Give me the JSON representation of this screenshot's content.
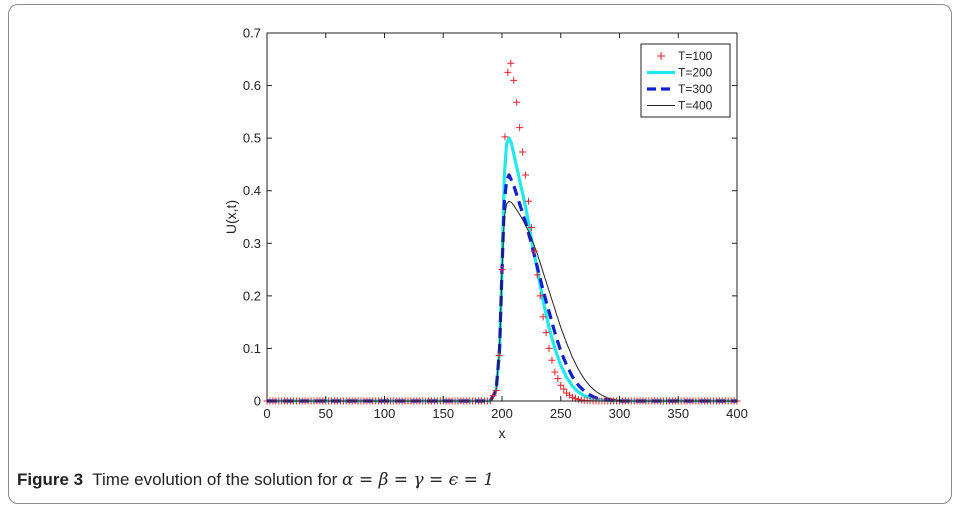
{
  "caption": {
    "label": "Figure 3",
    "text": "Time evolution of the solution for ",
    "math": "α = β = γ = ϵ = 1"
  },
  "chart_data": {
    "type": "line",
    "xlabel": "x",
    "ylabel": "U(x,t)",
    "xlim": [
      0,
      400
    ],
    "ylim": [
      0,
      0.7
    ],
    "xticks": [
      "0",
      "50",
      "100",
      "150",
      "200",
      "250",
      "300",
      "350",
      "400"
    ],
    "yticks": [
      "0",
      "0.1",
      "0.2",
      "0.3",
      "0.4",
      "0.5",
      "0.6",
      "0.7"
    ],
    "legend_position": "top-right",
    "series": [
      {
        "name": "T=100",
        "style": "plus-markers",
        "color": "#e8202a",
        "x": [
          0,
          190,
          195,
          198,
          200,
          202,
          204,
          206,
          208,
          210,
          213,
          216,
          220,
          225,
          230,
          235,
          240,
          245,
          250,
          255,
          260,
          265,
          270,
          280,
          300,
          400
        ],
        "y": [
          0,
          0.0,
          0.02,
          0.1,
          0.25,
          0.47,
          0.6,
          0.65,
          0.64,
          0.61,
          0.56,
          0.5,
          0.43,
          0.33,
          0.24,
          0.16,
          0.1,
          0.055,
          0.03,
          0.015,
          0.007,
          0.003,
          0.001,
          0,
          0,
          0
        ]
      },
      {
        "name": "T=200",
        "style": "thick-solid",
        "color": "#22e8ee",
        "x": [
          0,
          190,
          195,
          198,
          200,
          202,
          204,
          206,
          208,
          210,
          215,
          220,
          225,
          230,
          235,
          240,
          245,
          250,
          255,
          260,
          265,
          270,
          275,
          280,
          290,
          300,
          400
        ],
        "y": [
          0,
          0.0,
          0.02,
          0.1,
          0.25,
          0.43,
          0.49,
          0.5,
          0.49,
          0.47,
          0.42,
          0.37,
          0.31,
          0.25,
          0.19,
          0.14,
          0.1,
          0.068,
          0.045,
          0.028,
          0.017,
          0.01,
          0.006,
          0.003,
          0.001,
          0,
          0
        ]
      },
      {
        "name": "T=300",
        "style": "thick-dashed",
        "color": "#1020d0",
        "x": [
          0,
          190,
          195,
          198,
          200,
          202,
          204,
          206,
          208,
          210,
          215,
          220,
          225,
          230,
          235,
          240,
          245,
          250,
          255,
          260,
          265,
          270,
          275,
          280,
          290,
          300,
          400
        ],
        "y": [
          0,
          0.0,
          0.02,
          0.1,
          0.25,
          0.38,
          0.42,
          0.43,
          0.42,
          0.41,
          0.375,
          0.34,
          0.3,
          0.255,
          0.21,
          0.17,
          0.13,
          0.095,
          0.068,
          0.046,
          0.03,
          0.019,
          0.011,
          0.006,
          0.002,
          0,
          0
        ]
      },
      {
        "name": "T=400",
        "style": "thin-solid",
        "color": "#222222",
        "x": [
          0,
          190,
          195,
          198,
          200,
          202,
          204,
          206,
          208,
          210,
          215,
          220,
          225,
          230,
          235,
          240,
          245,
          250,
          255,
          260,
          265,
          270,
          275,
          280,
          285,
          290,
          295,
          300,
          310,
          400
        ],
        "y": [
          0,
          0.0,
          0.02,
          0.1,
          0.25,
          0.35,
          0.375,
          0.38,
          0.378,
          0.372,
          0.355,
          0.335,
          0.31,
          0.28,
          0.245,
          0.21,
          0.175,
          0.14,
          0.11,
          0.083,
          0.06,
          0.042,
          0.028,
          0.018,
          0.011,
          0.006,
          0.003,
          0.001,
          0,
          0
        ]
      }
    ]
  }
}
